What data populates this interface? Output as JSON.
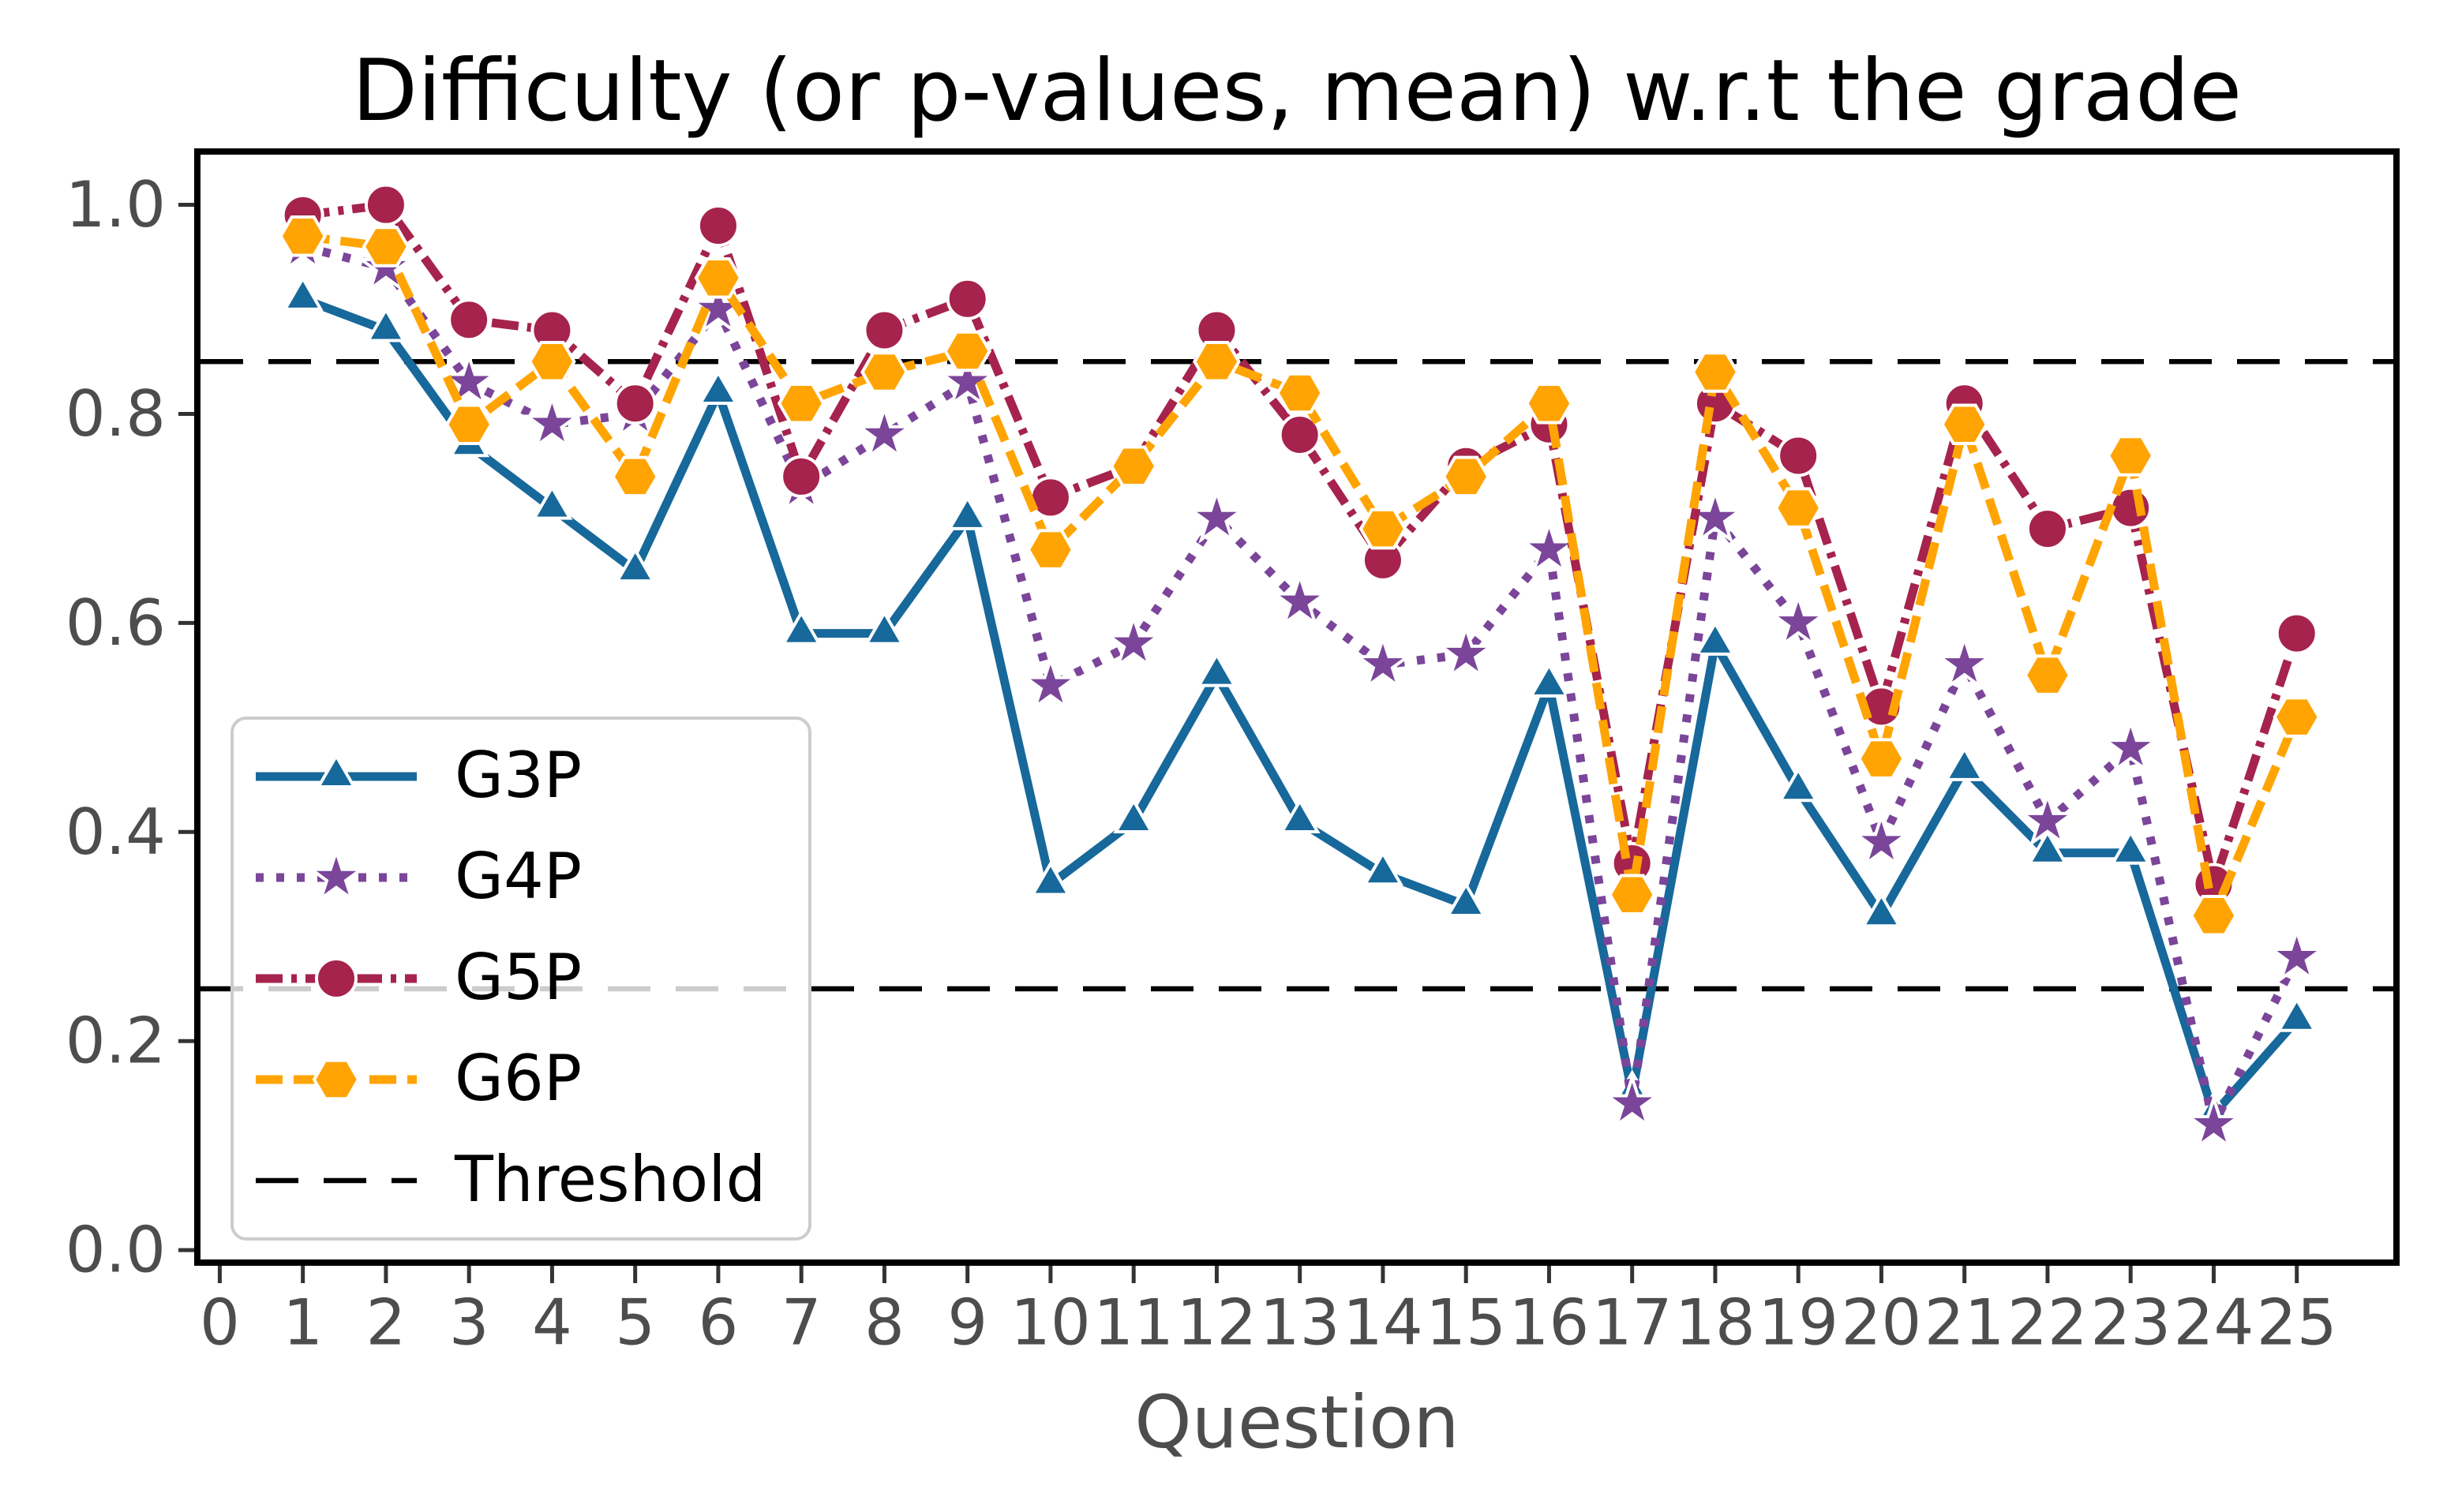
{
  "chart_data": {
    "type": "line",
    "title": "Difficulty (or p-values, mean) w.r.t the grade",
    "xlabel": "Question",
    "ylabel": "",
    "x": [
      1,
      2,
      3,
      4,
      5,
      6,
      7,
      8,
      9,
      10,
      11,
      12,
      13,
      14,
      15,
      16,
      17,
      18,
      19,
      20,
      21,
      22,
      23,
      24,
      25
    ],
    "series": [
      {
        "name": "G3P",
        "color": "#17689b",
        "linestyle": "solid",
        "marker": "triangle_up",
        "values": [
          0.91,
          0.88,
          0.77,
          0.71,
          0.65,
          0.82,
          0.59,
          0.59,
          0.7,
          0.35,
          0.41,
          0.55,
          0.41,
          0.36,
          0.33,
          0.54,
          0.15,
          0.58,
          0.44,
          0.32,
          0.46,
          0.38,
          0.38,
          0.13,
          0.22
        ]
      },
      {
        "name": "G4P",
        "color": "#7b459a",
        "linestyle": "dotted",
        "marker": "star",
        "values": [
          0.96,
          0.94,
          0.83,
          0.79,
          0.8,
          0.9,
          0.73,
          0.78,
          0.83,
          0.54,
          0.58,
          0.7,
          0.62,
          0.56,
          0.57,
          0.67,
          0.14,
          0.7,
          0.6,
          0.39,
          0.56,
          0.41,
          0.48,
          0.12,
          0.28
        ]
      },
      {
        "name": "G5P",
        "color": "#a5234c",
        "linestyle": "dashdot",
        "marker": "circle",
        "values": [
          0.99,
          1.0,
          0.89,
          0.88,
          0.81,
          0.98,
          0.74,
          0.88,
          0.91,
          0.72,
          0.75,
          0.88,
          0.78,
          0.66,
          0.75,
          0.79,
          0.37,
          0.81,
          0.76,
          0.52,
          0.81,
          0.69,
          0.71,
          0.35,
          0.59
        ]
      },
      {
        "name": "G6P",
        "color": "#ffa402",
        "linestyle": "dashed",
        "marker": "hexagon",
        "values": [
          0.97,
          0.96,
          0.79,
          0.85,
          0.74,
          0.93,
          0.81,
          0.84,
          0.86,
          0.67,
          0.75,
          0.85,
          0.82,
          0.69,
          0.74,
          0.81,
          0.34,
          0.84,
          0.71,
          0.47,
          0.79,
          0.55,
          0.76,
          0.32,
          0.51
        ]
      }
    ],
    "thresholds": {
      "label": "Threshold",
      "color": "#000000",
      "linestyle": "dashed",
      "values": [
        0.85,
        0.25
      ]
    },
    "legend": {
      "position": "lower left",
      "labels": [
        "G3P",
        "G4P",
        "G5P",
        "G6P",
        "Threshold"
      ]
    },
    "axes": {
      "xlim": [
        -0.27,
        26.2
      ],
      "ylim": [
        -0.012,
        1.051
      ],
      "xticks": [
        "0",
        "1",
        "2",
        "3",
        "4",
        "5",
        "6",
        "7",
        "8",
        "9",
        "10",
        "11",
        "12",
        "13",
        "14",
        "15",
        "16",
        "17",
        "18",
        "19",
        "20",
        "21",
        "22",
        "23",
        "24",
        "25"
      ],
      "yticks": [
        {
          "value": 0.0,
          "label": "0.0"
        },
        {
          "value": 0.2,
          "label": "0.2"
        },
        {
          "value": 0.4,
          "label": "0.4"
        },
        {
          "value": 0.6,
          "label": "0.6"
        },
        {
          "value": 0.8,
          "label": "0.8"
        },
        {
          "value": 1.0,
          "label": "1.0"
        }
      ],
      "tick_label_color": "#4d4d4d",
      "tick_mark_color": "#333333",
      "spine_color": "#000000",
      "grid": false
    }
  }
}
